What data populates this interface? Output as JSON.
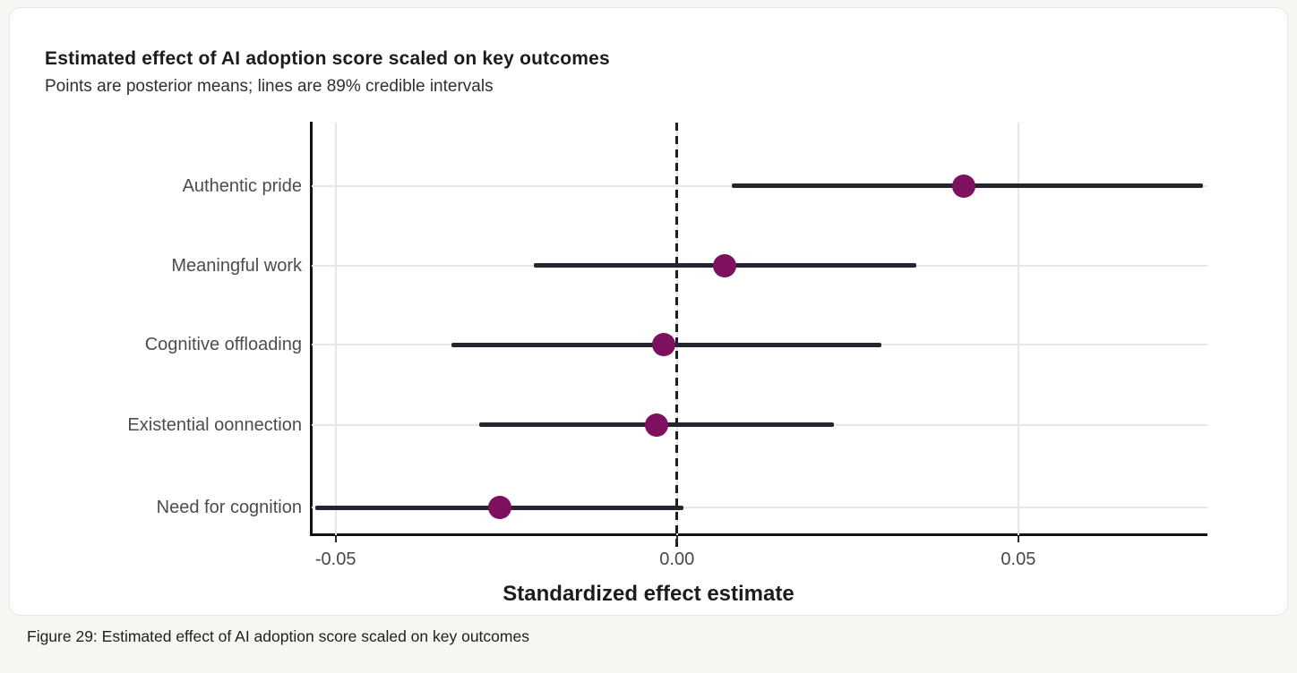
{
  "page": {
    "caption": "Figure 29: Estimated effect of AI adoption score scaled on key outcomes"
  },
  "chart_data": {
    "type": "scatter",
    "variant": "forest-plot",
    "title": "Estimated effect of AI adoption score scaled on key outcomes",
    "subtitle": "Points are posterior means; lines are 89% credible intervals",
    "xlabel": "Standardized effect estimate",
    "ylabel": "",
    "interval_label": "89% credible interval",
    "xlim": [
      -0.0535,
      0.0777
    ],
    "x_ticks": [
      -0.05,
      0.0,
      0.05
    ],
    "x_tick_labels": [
      "-0.05",
      "0.00",
      "0.05"
    ],
    "zero_reference_line": 0.0,
    "grid": "major-x-and-row-lines",
    "legend_position": "none",
    "categories": [
      "Authentic pride",
      "Meaningful work",
      "Cognitive offloading",
      "Existential oonnection",
      "Need for cognition"
    ],
    "points": [
      {
        "label": "Authentic pride",
        "mean": 0.042,
        "ci_low": 0.008,
        "ci_high": 0.077
      },
      {
        "label": "Meaningful work",
        "mean": 0.007,
        "ci_low": -0.021,
        "ci_high": 0.035
      },
      {
        "label": "Cognitive offloading",
        "mean": -0.002,
        "ci_low": -0.033,
        "ci_high": 0.03
      },
      {
        "label": "Existential oonnection",
        "mean": -0.003,
        "ci_low": -0.029,
        "ci_high": 0.023
      },
      {
        "label": "Need for cognition",
        "mean": -0.026,
        "ci_low": -0.053,
        "ci_high": 0.001
      }
    ],
    "colors": {
      "point": "#7d1160",
      "interval": "#26242e",
      "zero_line": "#1e1e22",
      "grid": "#e6e6e6",
      "axis": "#141414",
      "card_background": "#ffffff",
      "page_background": "#f7f6f2"
    }
  }
}
